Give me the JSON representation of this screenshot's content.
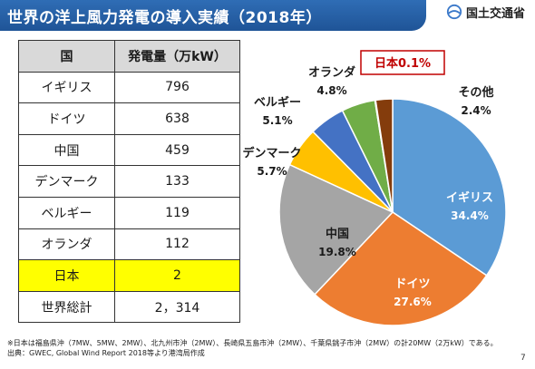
{
  "header": {
    "title": "世界の洋上風力発電の導入実績（2018年）",
    "ministry": "国土交通省"
  },
  "table": {
    "columns": [
      "国",
      "発電量（万kW）"
    ],
    "rows": [
      {
        "country": "イギリス",
        "value": "796"
      },
      {
        "country": "ドイツ",
        "value": "638"
      },
      {
        "country": "中国",
        "value": "459"
      },
      {
        "country": "デンマーク",
        "value": "133"
      },
      {
        "country": "ベルギー",
        "value": "119"
      },
      {
        "country": "オランダ",
        "value": "112"
      },
      {
        "country": "日本",
        "value": "2",
        "highlight": true
      },
      {
        "country": "世界総計",
        "value": "2，314"
      }
    ]
  },
  "chart_data": {
    "type": "pie",
    "slices": [
      {
        "label": "イギリス",
        "value": 34.4,
        "pct": "34.4%",
        "color": "#5b9bd5"
      },
      {
        "label": "ドイツ",
        "value": 27.6,
        "pct": "27.6%",
        "color": "#ed7d31"
      },
      {
        "label": "中国",
        "value": 19.8,
        "pct": "19.8%",
        "color": "#a5a5a5"
      },
      {
        "label": "デンマーク",
        "value": 5.7,
        "pct": "5.7%",
        "color": "#ffc000"
      },
      {
        "label": "ベルギー",
        "value": 5.1,
        "pct": "5.1%",
        "color": "#4472c4"
      },
      {
        "label": "オランダ",
        "value": 4.8,
        "pct": "4.8%",
        "color": "#70ad47"
      },
      {
        "label": "日本",
        "value": 0.1,
        "pct": "0.1%",
        "color": "#c00000",
        "text": "日本0.1%"
      },
      {
        "label": "その他",
        "value": 2.4,
        "pct": "2.4%",
        "color": "#843c0c"
      }
    ]
  },
  "footer": {
    "note": "※日本は福島県沖（7MW、5MW、2MW）、北九州市沖（2MW）、長崎県五島市沖（2MW）、千葉県銚子市沖（2MW）の計20MW（2万kW）である。",
    "source": "出典：GWEC, Global Wind Report 2018等より港湾局作成",
    "page": "7"
  }
}
